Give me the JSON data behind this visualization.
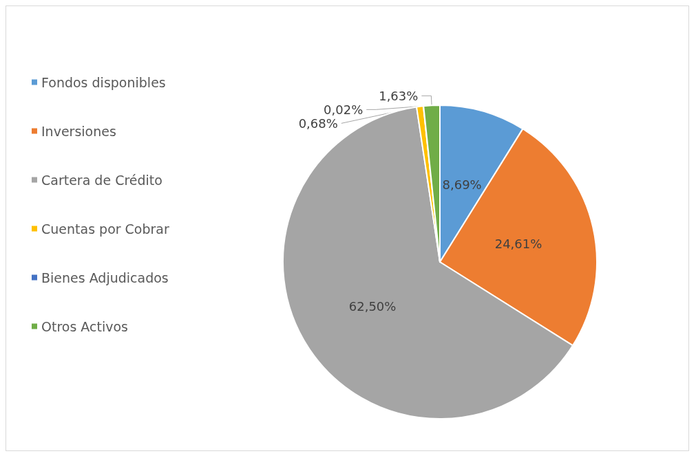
{
  "chart_data": {
    "type": "pie",
    "categories": [
      "Fondos disponibles",
      "Inversiones",
      "Cartera de Crédito",
      "Cuentas por Cobrar",
      "Bienes Adjudicados",
      "Otros Activos"
    ],
    "values": [
      8.69,
      24.61,
      62.5,
      0.68,
      0.02,
      1.63
    ],
    "value_labels": [
      "8,69%",
      "24,61%",
      "62,50%",
      "0,68%",
      "0,02%",
      "1,63%"
    ],
    "colors": [
      "#5b9bd5",
      "#ed7d31",
      "#a5a5a5",
      "#ffc000",
      "#4472c4",
      "#70ad47"
    ],
    "legend": "left"
  }
}
